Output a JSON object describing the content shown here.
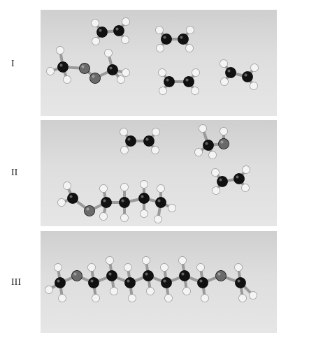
{
  "panels": [
    {
      "label": "I"
    },
    {
      "label": "II"
    },
    {
      "label": "III"
    }
  ],
  "colors": {
    "carbon": "#111111",
    "hydrogen": "#f4f4f4",
    "oxygen": "#6a6a6a",
    "bond": "#9a9a9a",
    "background": "#d9d9d9"
  }
}
